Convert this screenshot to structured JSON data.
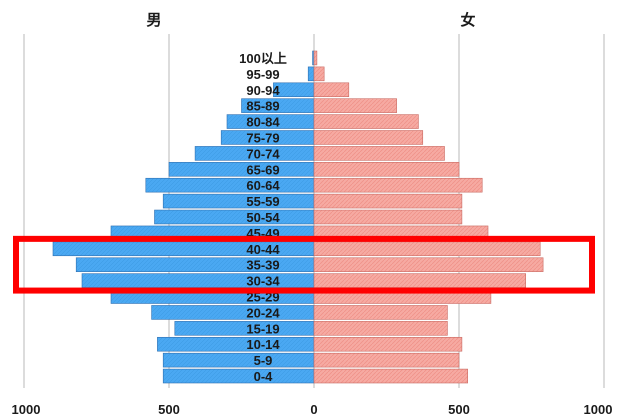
{
  "chart_data": {
    "type": "bar",
    "orientation": "horizontal-pyramid",
    "categories": [
      "0-4",
      "5-9",
      "10-14",
      "15-19",
      "20-24",
      "25-29",
      "30-34",
      "35-39",
      "40-44",
      "45-49",
      "50-54",
      "55-59",
      "60-64",
      "65-69",
      "70-74",
      "75-79",
      "80-84",
      "85-89",
      "90-94",
      "95-99",
      "100以上"
    ],
    "series": [
      {
        "name": "男",
        "color": "#4da6f0",
        "values": [
          520,
          520,
          540,
          480,
          560,
          700,
          800,
          820,
          900,
          700,
          550,
          520,
          580,
          500,
          410,
          320,
          300,
          250,
          140,
          20,
          5
        ]
      },
      {
        "name": "女",
        "color": "#f4a19a",
        "values": [
          530,
          500,
          510,
          460,
          460,
          610,
          730,
          790,
          780,
          600,
          510,
          510,
          580,
          500,
          450,
          375,
          360,
          285,
          120,
          35,
          10
        ]
      }
    ],
    "xlim": [
      -1000,
      1000
    ],
    "x_ticks": [
      {
        "value": -1000,
        "label": "1000"
      },
      {
        "value": -500,
        "label": "500"
      },
      {
        "value": 0,
        "label": "0"
      },
      {
        "value": 500,
        "label": "500"
      },
      {
        "value": 1000,
        "label": "1000"
      }
    ],
    "gridlines": true,
    "highlight": {
      "from": "30-34",
      "to": "40-44",
      "color": "#ff0000"
    },
    "title": "",
    "xlabel": "",
    "ylabel": ""
  },
  "labels": {
    "male": "男",
    "female": "女"
  }
}
